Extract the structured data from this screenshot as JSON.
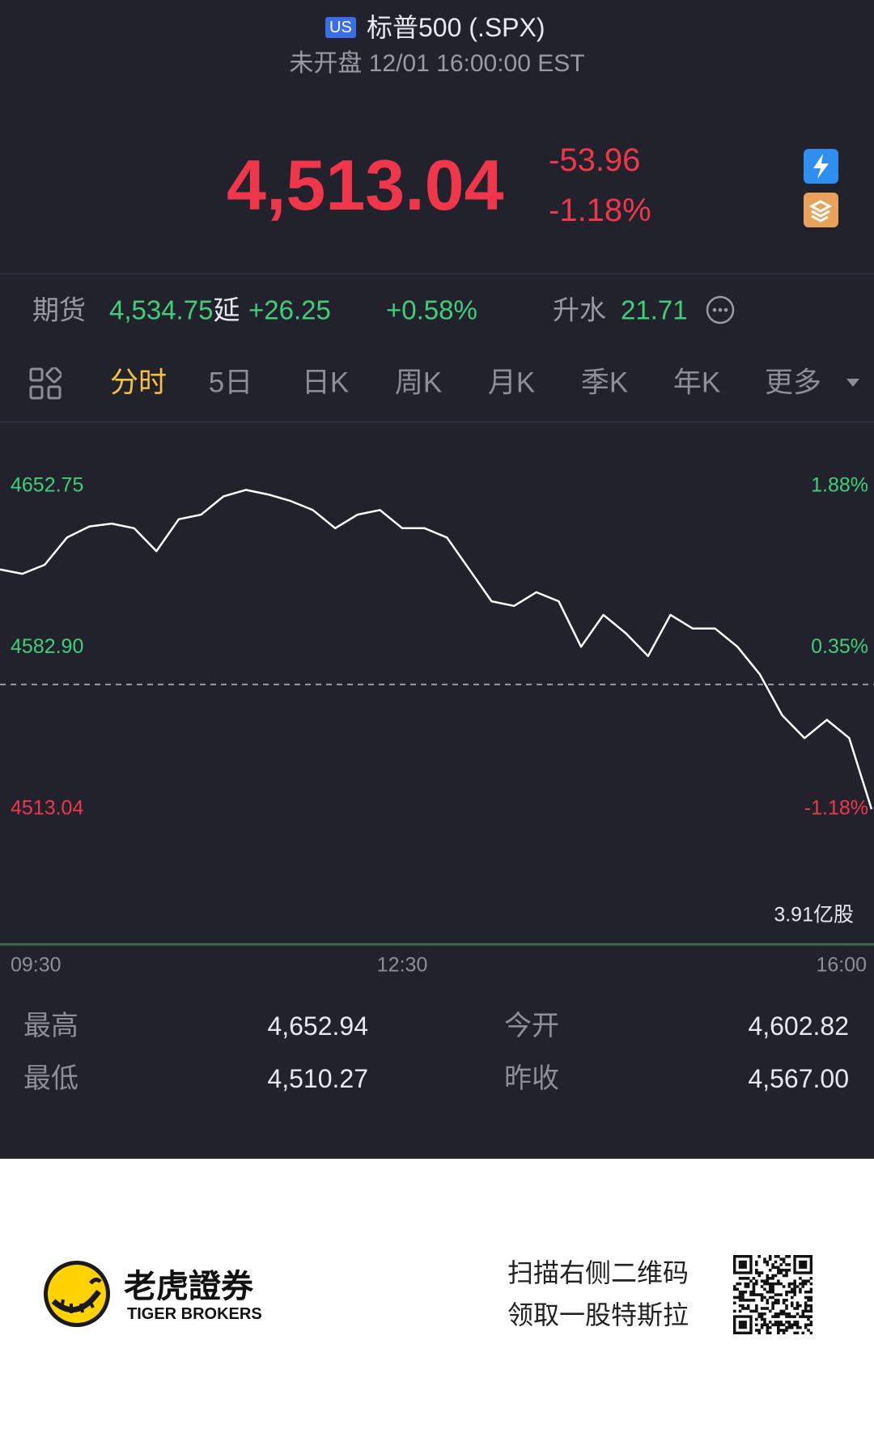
{
  "header": {
    "market_badge": "US",
    "title": "标普500 (.SPX)",
    "status": "未开盘 12/01 16:00:00 EST"
  },
  "quote": {
    "price": "4,513.04",
    "change": "-53.96",
    "change_pct": "-1.18%"
  },
  "futures": {
    "label": "期货",
    "price": "4,534.75",
    "delay": "延",
    "change": "+26.25",
    "change_pct": "+0.58%",
    "premium_label": "升水",
    "premium": "21.71"
  },
  "tabs": [
    "分时",
    "5日",
    "日K",
    "周K",
    "月K",
    "季K",
    "年K",
    "更多"
  ],
  "chart_data": {
    "type": "line",
    "x": [
      "09:30",
      "09:40",
      "09:50",
      "10:00",
      "10:10",
      "10:20",
      "10:30",
      "10:40",
      "10:50",
      "11:00",
      "11:10",
      "11:20",
      "11:30",
      "11:40",
      "11:50",
      "12:00",
      "12:10",
      "12:20",
      "12:30",
      "12:40",
      "12:50",
      "13:00",
      "13:10",
      "13:20",
      "13:30",
      "13:40",
      "13:50",
      "14:00",
      "14:10",
      "14:20",
      "14:30",
      "14:40",
      "14:50",
      "15:00",
      "15:10",
      "15:20",
      "15:30",
      "15:40",
      "15:50",
      "16:00"
    ],
    "series": [
      {
        "color": "#ffffff",
        "values": [
          4616.8,
          4614.9,
          4618.8,
          4630.6,
          4635.4,
          4636.6,
          4634.6,
          4624.7,
          4638.5,
          4640.5,
          4648.4,
          4651.2,
          4649.2,
          4646.4,
          4642.5,
          4634.6,
          4640.5,
          4642.5,
          4634.6,
          4634.6,
          4630.6,
          4616.8,
          4603.0,
          4601.0,
          4606.9,
          4603.0,
          4583.3,
          4597.1,
          4589.2,
          4579.3,
          4597.1,
          4591.2,
          4591.2,
          4583.3,
          4571.4,
          4553.7,
          4543.8,
          4551.7,
          4543.8,
          4513.04
        ]
      }
    ],
    "reference": 4567,
    "ylim": [
      4513.04,
      4652.75
    ],
    "yticks": [
      4652.75,
      {
        "value": 4582.9,
        "label": "4582.90"
      },
      4513.04
    ],
    "y2lim": [
      -1.18,
      1.88
    ],
    "y2ticks": [
      {
        "value": 1.88,
        "label": "1.88%"
      },
      {
        "value": 0.35,
        "label": "0.35%"
      },
      {
        "value": -1.18,
        "label": "-1.18%"
      }
    ],
    "volume_label": "3.91亿股"
  },
  "stats": [
    {
      "label": "最高",
      "value": "4,652.94"
    },
    {
      "label": "今开",
      "value": "4,602.82"
    },
    {
      "label": "最低",
      "value": "4,510.27"
    },
    {
      "label": "昨收",
      "value": "4,567.00"
    }
  ],
  "footer": {
    "brand": "老虎證券",
    "brand_en": "TIGER BROKERS",
    "promo": [
      "扫描右侧二维码",
      "领取一股特斯拉"
    ]
  }
}
